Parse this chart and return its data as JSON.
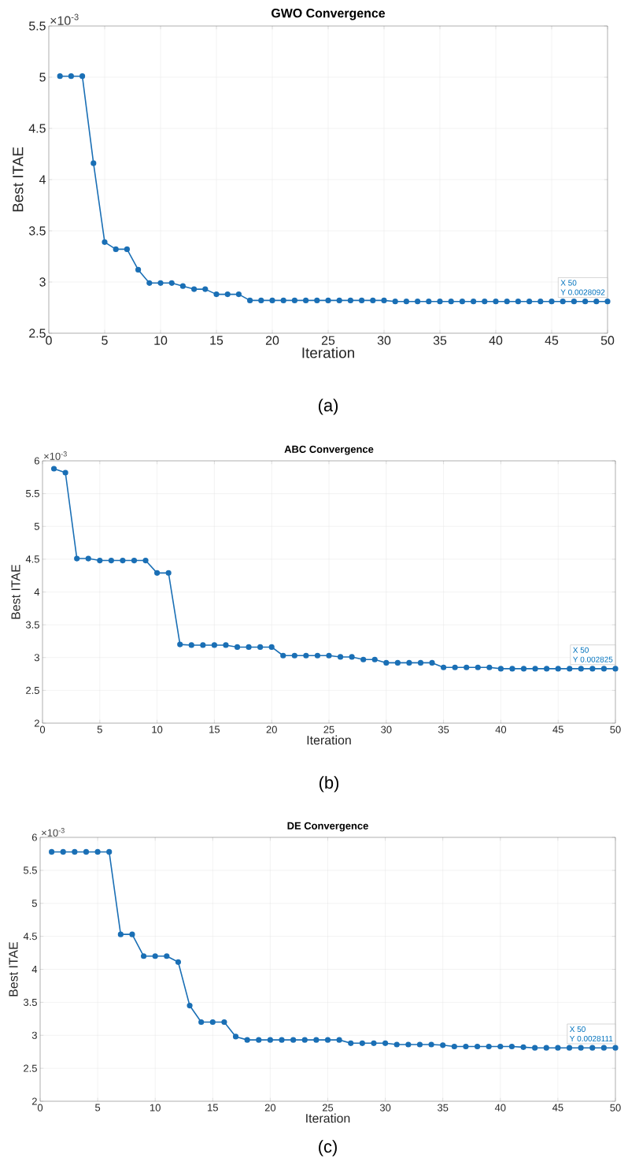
{
  "chart_data": [
    {
      "type": "line",
      "title": "GWO Convergence",
      "xlabel": "Iteration",
      "ylabel": "Best ITAE",
      "color": "#1a6fb5",
      "marker": "circle",
      "grid": true,
      "x": [
        1,
        2,
        3,
        4,
        5,
        6,
        7,
        8,
        9,
        10,
        11,
        12,
        13,
        14,
        15,
        16,
        17,
        18,
        19,
        20,
        21,
        22,
        23,
        24,
        25,
        26,
        27,
        28,
        29,
        30,
        31,
        32,
        33,
        34,
        35,
        36,
        37,
        38,
        39,
        40,
        41,
        42,
        43,
        44,
        45,
        46,
        47,
        48,
        49,
        50
      ],
      "values": [
        5.01,
        5.01,
        5.01,
        4.16,
        3.39,
        3.32,
        3.32,
        3.12,
        2.99,
        2.99,
        2.99,
        2.96,
        2.93,
        2.93,
        2.88,
        2.88,
        2.88,
        2.82,
        2.82,
        2.82,
        2.82,
        2.82,
        2.82,
        2.82,
        2.82,
        2.82,
        2.82,
        2.82,
        2.82,
        2.82,
        2.81,
        2.81,
        2.81,
        2.81,
        2.81,
        2.81,
        2.81,
        2.81,
        2.81,
        2.81,
        2.81,
        2.81,
        2.81,
        2.81,
        2.81,
        2.81,
        2.81,
        2.81,
        2.81,
        2.81
      ],
      "xlim": [
        0,
        50
      ],
      "xticks": [
        0,
        5,
        10,
        15,
        20,
        25,
        30,
        35,
        40,
        45,
        50
      ],
      "ylim": [
        2.5,
        5.5
      ],
      "yticks": [
        2.5,
        3,
        3.5,
        4,
        4.5,
        5,
        5.5
      ],
      "annotations": [
        "×10$^{-3}$",
        "X 50",
        "Y 0.0028092",
        "(a)"
      ]
    },
    {
      "type": "line",
      "title": "ABC Convergence",
      "xlabel": "Iteration",
      "ylabel": "Best ITAE",
      "color": "#1a6fb5",
      "marker": "circle",
      "grid": true,
      "x": [
        1,
        2,
        3,
        4,
        5,
        6,
        7,
        8,
        9,
        10,
        11,
        12,
        13,
        14,
        15,
        16,
        17,
        18,
        19,
        20,
        21,
        22,
        23,
        24,
        25,
        26,
        27,
        28,
        29,
        30,
        31,
        32,
        33,
        34,
        35,
        36,
        37,
        38,
        39,
        40,
        41,
        42,
        43,
        44,
        45,
        46,
        47,
        48,
        49,
        50
      ],
      "values": [
        5.88,
        5.82,
        4.51,
        4.51,
        4.48,
        4.48,
        4.48,
        4.48,
        4.48,
        4.29,
        4.29,
        3.2,
        3.19,
        3.19,
        3.19,
        3.19,
        3.16,
        3.16,
        3.16,
        3.16,
        3.03,
        3.03,
        3.03,
        3.03,
        3.03,
        3.01,
        3.01,
        2.97,
        2.97,
        2.92,
        2.92,
        2.92,
        2.92,
        2.92,
        2.85,
        2.85,
        2.85,
        2.85,
        2.85,
        2.83,
        2.83,
        2.83,
        2.83,
        2.83,
        2.83,
        2.83,
        2.83,
        2.83,
        2.83,
        2.83
      ],
      "xlim": [
        0,
        50
      ],
      "xticks": [
        0,
        5,
        10,
        15,
        20,
        25,
        30,
        35,
        40,
        45,
        50
      ],
      "ylim": [
        2,
        6
      ],
      "yticks": [
        2,
        2.5,
        3,
        3.5,
        4,
        4.5,
        5,
        5.5,
        6
      ],
      "annotations": [
        "×10$^{-3}$",
        "X 50",
        "Y 0.002825",
        "(b)"
      ]
    },
    {
      "type": "line",
      "title": "DE Convergence",
      "xlabel": "Iteration",
      "ylabel": "Best ITAE",
      "color": "#1a6fb5",
      "marker": "circle",
      "grid": true,
      "x": [
        1,
        2,
        3,
        4,
        5,
        6,
        7,
        8,
        9,
        10,
        11,
        12,
        13,
        14,
        15,
        16,
        17,
        18,
        19,
        20,
        21,
        22,
        23,
        24,
        25,
        26,
        27,
        28,
        29,
        30,
        31,
        32,
        33,
        34,
        35,
        36,
        37,
        38,
        39,
        40,
        41,
        42,
        43,
        44,
        45,
        46,
        47,
        48,
        49,
        50
      ],
      "values": [
        5.78,
        5.78,
        5.78,
        5.78,
        5.78,
        5.78,
        4.53,
        4.53,
        4.2,
        4.2,
        4.2,
        4.11,
        3.45,
        3.2,
        3.2,
        3.2,
        2.98,
        2.93,
        2.93,
        2.93,
        2.93,
        2.93,
        2.93,
        2.93,
        2.93,
        2.93,
        2.88,
        2.88,
        2.88,
        2.88,
        2.86,
        2.86,
        2.86,
        2.86,
        2.85,
        2.83,
        2.83,
        2.83,
        2.83,
        2.83,
        2.83,
        2.82,
        2.81,
        2.81,
        2.81,
        2.81,
        2.81,
        2.81,
        2.81,
        2.81
      ],
      "xlim": [
        0,
        50
      ],
      "xticks": [
        0,
        5,
        10,
        15,
        20,
        25,
        30,
        35,
        40,
        45,
        50
      ],
      "ylim": [
        2,
        6
      ],
      "yticks": [
        2,
        2.5,
        3,
        3.5,
        4,
        4.5,
        5,
        5.5,
        6
      ],
      "annotations": [
        "×10$^{-3}$",
        "X 50",
        "Y 0.0028111",
        "(c)"
      ]
    }
  ]
}
